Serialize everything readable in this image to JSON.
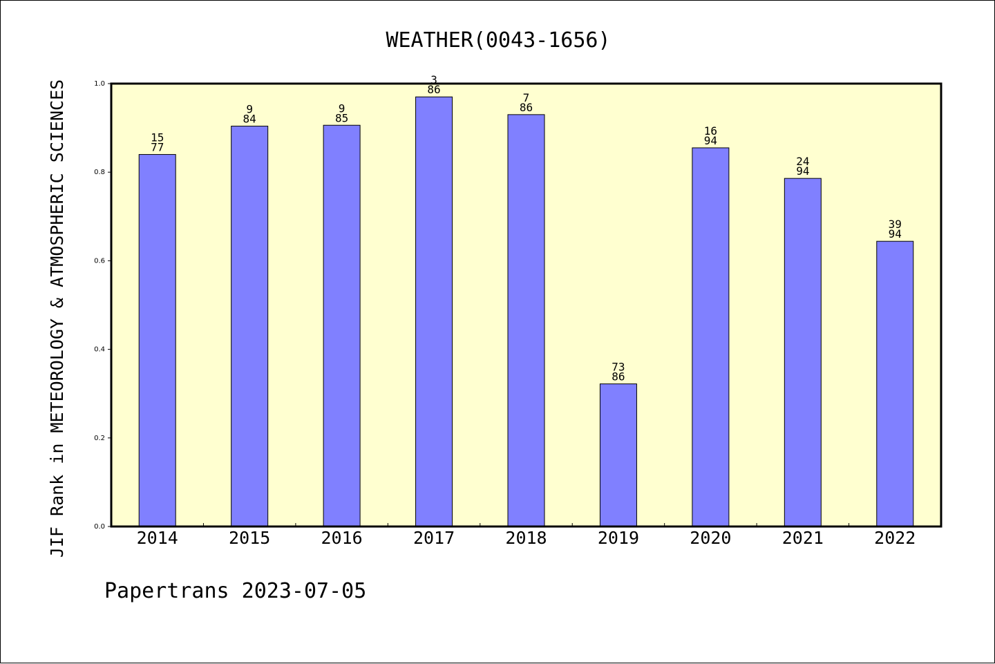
{
  "chart_data": {
    "type": "bar",
    "title": "WEATHER(0043-1656)",
    "xlabel": "",
    "ylabel": "JIF Rank in METEOROLOGY & ATMOSPHERIC SCIENCES",
    "ylim": [
      0,
      1.0
    ],
    "yticks": [
      "0.0",
      "0.2",
      "0.4",
      "0.6",
      "0.8",
      "1.0"
    ],
    "categories": [
      "2014",
      "2015",
      "2016",
      "2017",
      "2018",
      "2019",
      "2020",
      "2021",
      "2022"
    ],
    "values": [
      0.84,
      0.904,
      0.906,
      0.97,
      0.93,
      0.322,
      0.855,
      0.786,
      0.644
    ],
    "rank": [
      "15",
      "9",
      "9",
      "3",
      "7",
      "73",
      "16",
      "24",
      "39"
    ],
    "total": [
      "77",
      "84",
      "85",
      "86",
      "86",
      "86",
      "94",
      "94",
      "94"
    ],
    "grid": false,
    "legend": "none",
    "colors": {
      "bar": "#8080ff",
      "plot_bg": "#ffffd0",
      "axis": "#000000"
    }
  },
  "footer": "Papertrans 2023-07-05"
}
